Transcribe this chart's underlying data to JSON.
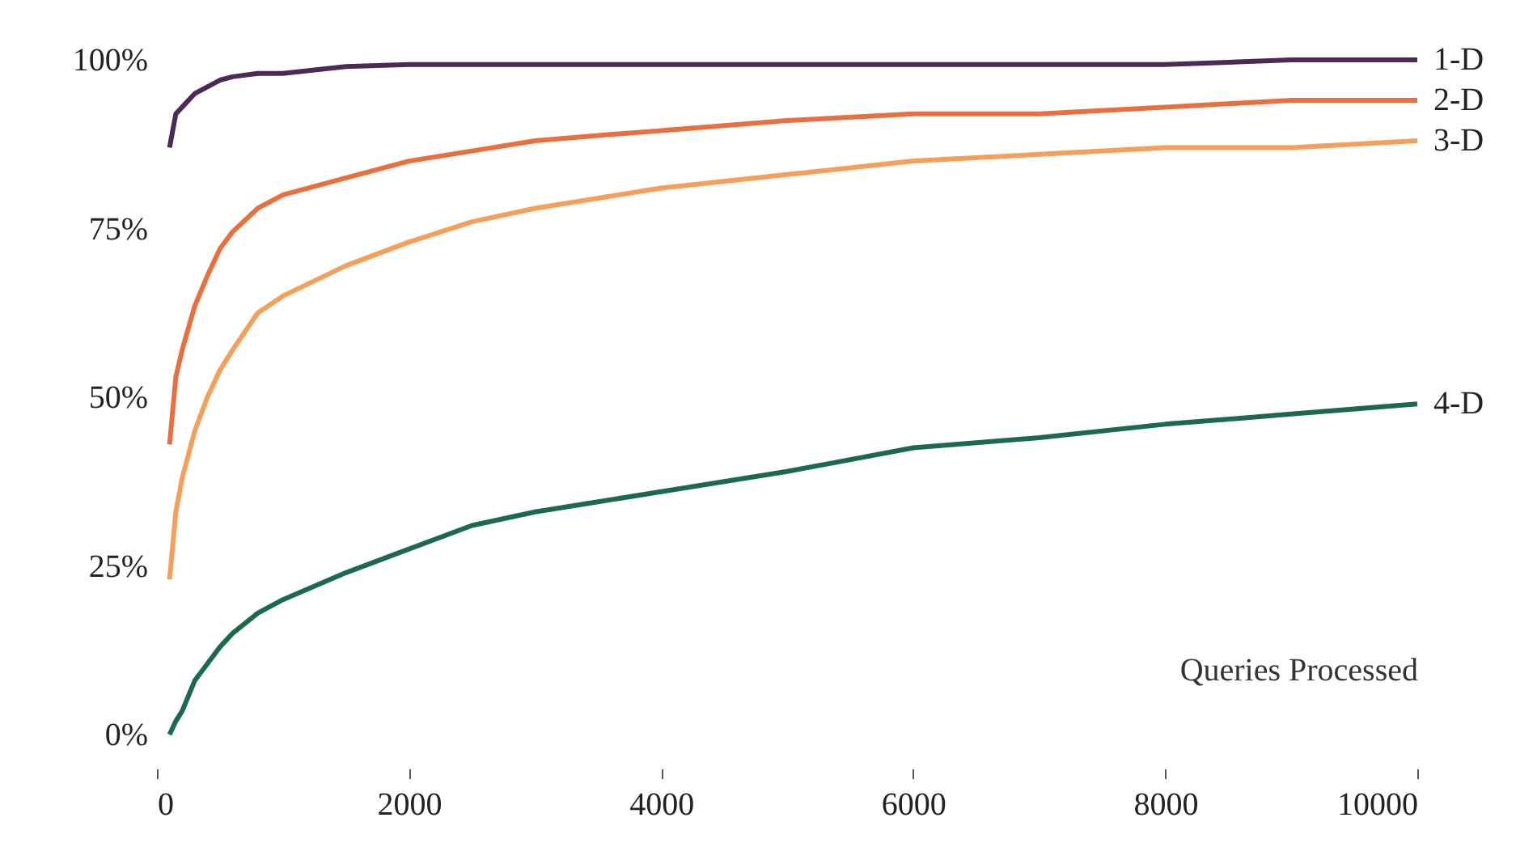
{
  "chart_data": {
    "type": "line",
    "xlabel": "Queries Processed",
    "x": [
      100,
      150,
      200,
      300,
      400,
      500,
      600,
      800,
      1000,
      1500,
      2000,
      2500,
      3000,
      3500,
      4000,
      5000,
      6000,
      7000,
      8000,
      9000,
      10000
    ],
    "series": [
      {
        "name": "1-D",
        "color": "#4b2a55",
        "values": [
          87,
          92,
          93,
          95,
          96,
          97,
          97.5,
          98,
          98,
          99,
          99.3,
          99.3,
          99.3,
          99.3,
          99.3,
          99.3,
          99.3,
          99.3,
          99.3,
          100,
          100
        ]
      },
      {
        "name": "2-D",
        "color": "#e8703f",
        "values": [
          43,
          53,
          57,
          63.5,
          68,
          72,
          74.5,
          78,
          80,
          82.5,
          85,
          86.5,
          88,
          88.8,
          89.5,
          91,
          92,
          92,
          93,
          94,
          94
        ]
      },
      {
        "name": "3-D",
        "color": "#f5a05a",
        "values": [
          23,
          33,
          38,
          45,
          50,
          54,
          57,
          62.5,
          65,
          69.5,
          73,
          76,
          78,
          79.5,
          81,
          83,
          85,
          86,
          87,
          87,
          88
        ]
      },
      {
        "name": "4-D",
        "color": "#1b6a4a",
        "values": [
          0,
          2,
          3.5,
          8,
          10.5,
          13,
          15,
          18,
          20,
          24,
          27.5,
          31,
          33,
          34.5,
          36,
          39,
          42.5,
          44,
          46,
          47.5,
          49
        ]
      }
    ],
    "xlim": [
      0,
      10000
    ],
    "xticks": [
      0,
      2000,
      4000,
      6000,
      8000,
      10000
    ],
    "ylim": [
      0,
      100
    ],
    "yticks": [
      {
        "value": 0,
        "label": "0%"
      },
      {
        "value": 25,
        "label": "25%"
      },
      {
        "value": 50,
        "label": "50%"
      },
      {
        "value": 75,
        "label": "75%"
      },
      {
        "value": 100,
        "label": "100%"
      }
    ],
    "grid": false,
    "legend": false
  }
}
